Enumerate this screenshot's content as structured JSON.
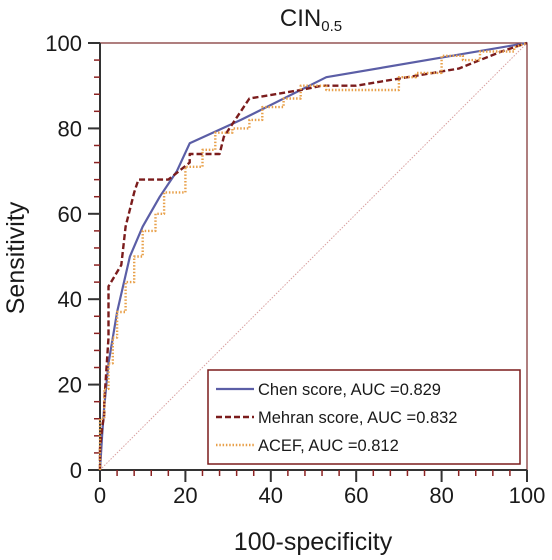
{
  "chart_data": {
    "type": "line",
    "title": "CIN",
    "title_subscript": "0.5",
    "xlabel": "100-specificity",
    "ylabel": "Sensitivity",
    "xlim": [
      0,
      100
    ],
    "ylim": [
      0,
      100
    ],
    "x_ticks": [
      0,
      20,
      40,
      60,
      80,
      100
    ],
    "y_ticks": [
      0,
      20,
      40,
      60,
      80,
      100
    ],
    "minor_tick_step": 4,
    "grid": false,
    "legend_position": "bottom-right",
    "colors": {
      "axis": "#7a2a2a",
      "tick": "#8b2222",
      "diagonal": "#d9a0a0",
      "chen": "#5b5ea6",
      "mehran": "#7b1c1c",
      "acef": "#e8a04a"
    },
    "reference_line": {
      "x": [
        0,
        100
      ],
      "y": [
        0,
        100
      ]
    },
    "series": [
      {
        "name": "Chen score, AUC =0.829",
        "style": "solid",
        "x": [
          0,
          0.5,
          1,
          2,
          4,
          7,
          10,
          14,
          18,
          21,
          33,
          53,
          100
        ],
        "y": [
          0,
          8,
          15,
          25,
          37,
          50,
          57,
          64,
          70,
          76.5,
          82,
          92,
          100
        ]
      },
      {
        "name": "Mehran score, AUC =0.832",
        "style": "dashed",
        "x": [
          0,
          0,
          0.5,
          1,
          1,
          2,
          2,
          5,
          6,
          7,
          8,
          9,
          16,
          21,
          21,
          24,
          28,
          29,
          35,
          47,
          52,
          60,
          78,
          84,
          94,
          100
        ],
        "y": [
          0,
          5,
          10,
          13,
          16,
          31,
          43,
          48,
          57,
          61,
          65,
          68,
          68,
          72,
          74,
          74,
          74,
          78,
          87,
          89,
          90,
          90,
          93,
          94,
          98,
          100
        ],
        "step": false
      },
      {
        "name": "ACEF, AUC =0.812",
        "style": "dotted",
        "x": [
          0,
          0,
          1,
          1,
          2,
          2,
          3,
          3,
          4,
          4,
          6,
          6,
          8,
          8,
          10,
          10,
          13,
          13,
          15,
          15,
          20,
          20,
          24,
          24,
          27,
          27,
          31,
          31,
          35,
          35,
          38,
          38,
          43,
          43,
          47,
          47,
          53,
          53,
          70,
          70,
          74,
          74,
          80,
          80,
          85,
          85,
          89,
          89,
          97,
          97,
          100
        ],
        "y": [
          0,
          12,
          12,
          19,
          19,
          25,
          25,
          31,
          31,
          37,
          37,
          44,
          44,
          50,
          50,
          56,
          56,
          60,
          60,
          65,
          65,
          71,
          71,
          75,
          75,
          79,
          79,
          80,
          80,
          82,
          82,
          85,
          85,
          87,
          87,
          90,
          90,
          89,
          89,
          92,
          92,
          93,
          93,
          97,
          97,
          96,
          96,
          98,
          98,
          99,
          100
        ]
      }
    ]
  }
}
